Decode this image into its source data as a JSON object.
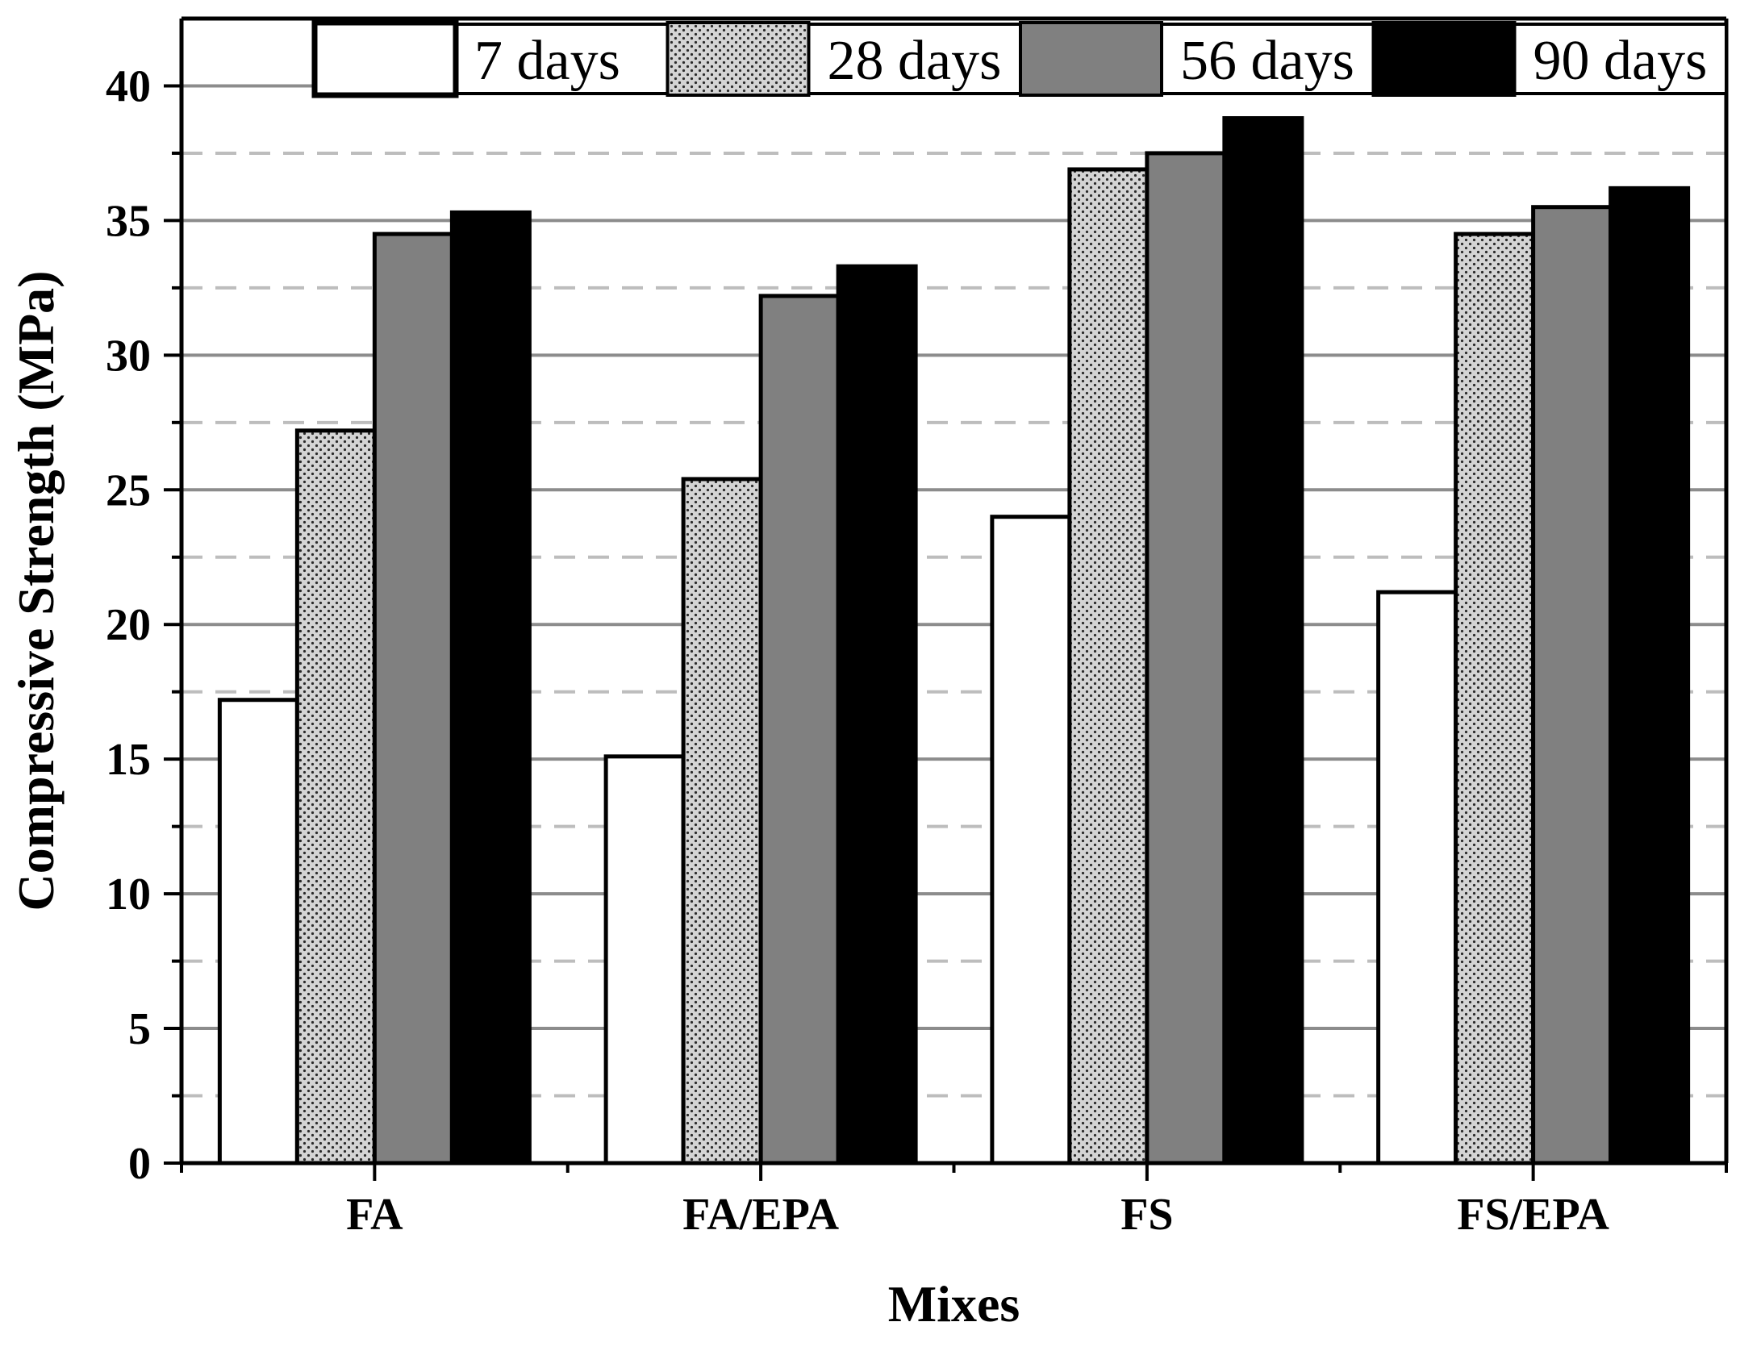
{
  "chart_data": {
    "type": "bar",
    "title": "",
    "xlabel": "Mixes",
    "ylabel": "Compressive Strength (MPa)",
    "ylim": [
      0,
      42.5
    ],
    "yticks": [
      0,
      5,
      10,
      15,
      20,
      25,
      30,
      35,
      40
    ],
    "grid": true,
    "legend_position": "top",
    "categories": [
      "FA",
      "FA/EPA",
      "FS",
      "FS/EPA"
    ],
    "series": [
      {
        "name": "7 days",
        "values": [
          17.2,
          15.1,
          24.0,
          21.2
        ]
      },
      {
        "name": "28 days",
        "values": [
          27.2,
          25.4,
          36.9,
          34.5
        ]
      },
      {
        "name": "56 days",
        "values": [
          34.5,
          32.2,
          37.5,
          35.5
        ]
      },
      {
        "name": "90 days",
        "values": [
          35.3,
          33.3,
          38.8,
          36.2
        ]
      }
    ],
    "colors": {
      "series_fills": [
        "#ffffff",
        "url(#dots)",
        "#808080",
        "#000000"
      ],
      "dots_bg": "#d4d4d4",
      "dots_fg": "#2a2a2a",
      "grid_major": "#8c8c8c",
      "grid_minor": "#bdbdbd"
    }
  }
}
